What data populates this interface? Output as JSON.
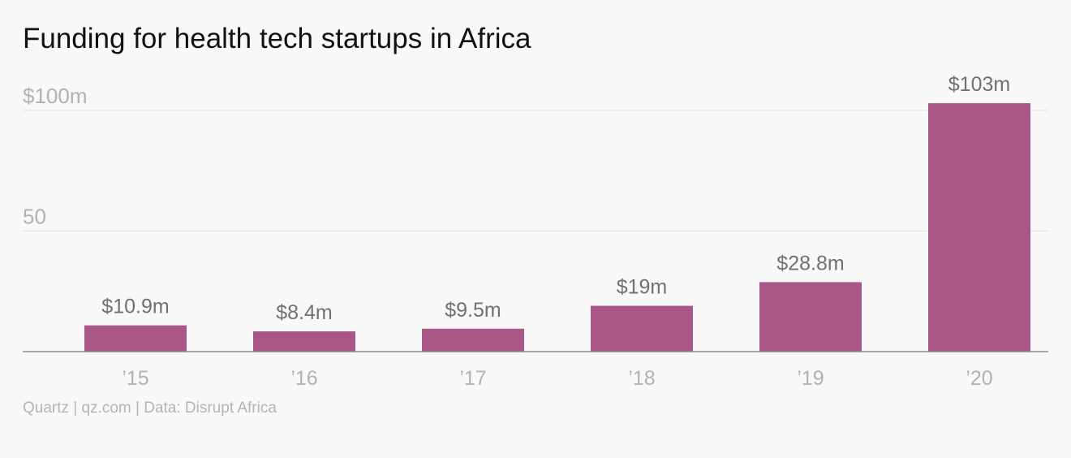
{
  "title": "Funding for health tech startups in Africa",
  "source": "Quartz | qz.com | Data: Disrupt Africa",
  "colors": {
    "bar": "#a95786",
    "grid": "#e2e2e2",
    "axis": "#8a8a8a",
    "tick_text": "#b2b2b2",
    "data_label": "#707070",
    "background": "#f8f8f8"
  },
  "chart_data": {
    "type": "bar",
    "categories": [
      "’15",
      "’16",
      "’17",
      "’18",
      "’19",
      "’20"
    ],
    "values": [
      10.9,
      8.4,
      9.5,
      19,
      28.8,
      103
    ],
    "data_labels": [
      "$10.9m",
      "$8.4m",
      "$9.5m",
      "$19m",
      "$28.8m",
      "$103m"
    ],
    "title": "Funding for health tech startups in Africa",
    "xlabel": "",
    "ylabel": "",
    "ylim": [
      0,
      103
    ],
    "y_ticks": [
      {
        "value": 50,
        "label": "50"
      },
      {
        "value": 100,
        "label": "$100m"
      }
    ],
    "grid": true
  }
}
